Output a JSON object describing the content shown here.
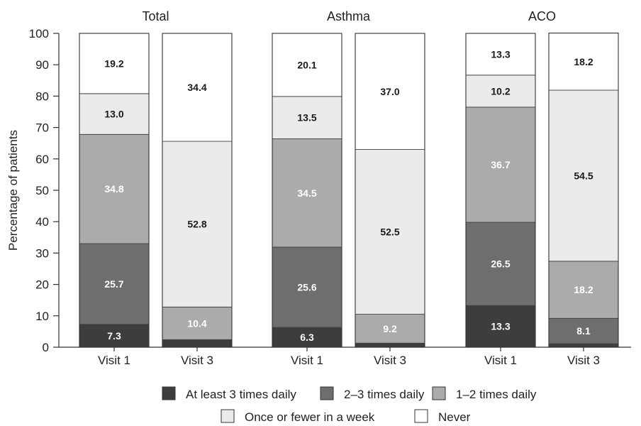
{
  "chart_data": {
    "type": "bar",
    "stacked": true,
    "ylabel": "Percentage of patients",
    "ylim": [
      0,
      100
    ],
    "yticks": [
      "0",
      "10",
      "20",
      "30",
      "40",
      "50",
      "60",
      "70",
      "80",
      "90",
      "100"
    ],
    "groups": [
      {
        "title": "Total",
        "bars": [
          {
            "label": "Visit 1",
            "values": [
              7.3,
              25.7,
              34.8,
              13.0,
              19.2
            ],
            "labels": [
              "7.3",
              "25.7",
              "34.8",
              "13.0",
              "19.2"
            ]
          },
          {
            "label": "Visit 3",
            "values": [
              2.4,
              0.0,
              10.4,
              52.8,
              34.4
            ],
            "labels": [
              "",
              "",
              "10.4",
              "52.8",
              "34.4"
            ]
          }
        ]
      },
      {
        "title": "Asthma",
        "bars": [
          {
            "label": "Visit 1",
            "values": [
              6.3,
              25.6,
              34.5,
              13.5,
              20.1
            ],
            "labels": [
              "6.3",
              "25.6",
              "34.5",
              "13.5",
              "20.1"
            ]
          },
          {
            "label": "Visit 3",
            "values": [
              1.3,
              0.0,
              9.2,
              52.5,
              37.0
            ],
            "labels": [
              "",
              "",
              "9.2",
              "52.5",
              "37.0"
            ]
          }
        ]
      },
      {
        "title": "ACO",
        "bars": [
          {
            "label": "Visit 1",
            "values": [
              13.3,
              26.5,
              36.7,
              10.2,
              13.3
            ],
            "labels": [
              "13.3",
              "26.5",
              "36.7",
              "10.2",
              "13.3"
            ]
          },
          {
            "label": "Visit 3",
            "values": [
              1.1,
              8.1,
              18.2,
              54.5,
              18.2
            ],
            "labels": [
              "",
              "8.1",
              "18.2",
              "54.5",
              "18.2"
            ]
          }
        ]
      }
    ],
    "series": [
      {
        "name": "At least 3 times daily",
        "color": "#3d3d3d",
        "label_color": "#ffffff"
      },
      {
        "name": "2–3 times daily",
        "color": "#6e6e6e",
        "label_color": "#ffffff"
      },
      {
        "name": "1–2 times daily",
        "color": "#ababab",
        "label_color": "#ffffff"
      },
      {
        "name": "Once or fewer in a week",
        "color": "#ebebeb",
        "label_color": "#1a1a1a"
      },
      {
        "name": "Never",
        "color": "#ffffff",
        "label_color": "#1a1a1a"
      }
    ],
    "legend_position": "bottom"
  }
}
